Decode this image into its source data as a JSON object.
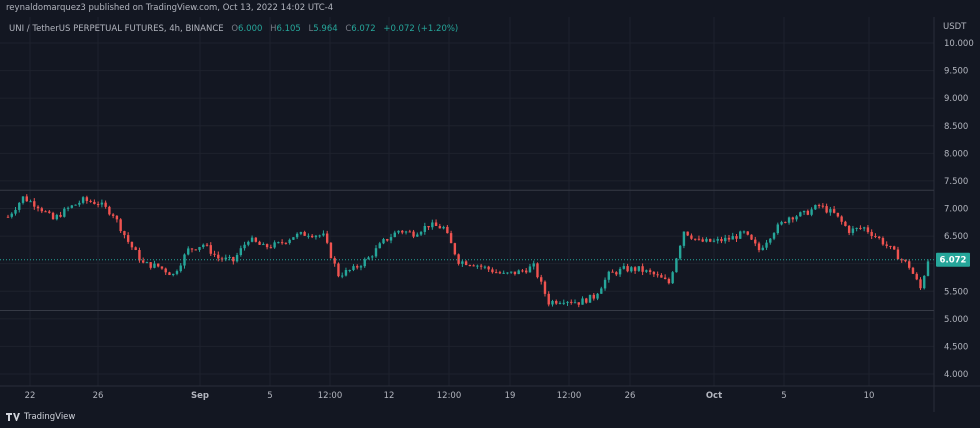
{
  "header": {
    "published": "reynaldomarquez3 published on TradingView.com, Oct 13, 2022 14:02 UTC-4"
  },
  "legend": {
    "symbol": "UNI / TetherUS PERPETUAL FUTURES, 4h, BINANCE",
    "o_label": "O",
    "o_value": "6.000",
    "h_label": "H",
    "h_value": "6.105",
    "l_label": "L",
    "l_value": "5.964",
    "c_label": "C",
    "c_value": "6.072",
    "change": "+0.072 (+1.20%)"
  },
  "footer": {
    "brand": "TradingView"
  },
  "colors": {
    "up": "#26a69a",
    "down": "#ef5350",
    "background": "#131722",
    "grid": "#1e222d",
    "text": "#b2b5be"
  },
  "chart_data": {
    "type": "candlestick",
    "symbol": "UNI / TetherUS PERPETUAL FUTURES",
    "interval": "4h",
    "exchange": "BINANCE",
    "currency": "USDT",
    "ylim": [
      3.8,
      10.2
    ],
    "y_ticks": [
      "10.000",
      "9.500",
      "9.000",
      "8.500",
      "8.000",
      "7.500",
      "7.000",
      "6.500",
      "6.000",
      "5.500",
      "5.000",
      "4.500",
      "4.000"
    ],
    "x_ticks": [
      "22",
      "26",
      "Sep",
      "5",
      "12:00",
      "12",
      "12:00",
      "19",
      "12:00",
      "26",
      "Oct",
      "5",
      "10"
    ],
    "x_tick_bold": [
      "Sep",
      "Oct"
    ],
    "last_price": 6.072,
    "horizontal_levels": [
      7.33,
      5.15
    ],
    "close_path": [
      [
        0,
        6.85
      ],
      [
        4,
        7.2
      ],
      [
        8,
        7.05
      ],
      [
        12,
        6.8
      ],
      [
        16,
        7.0
      ],
      [
        20,
        7.15
      ],
      [
        24,
        7.1
      ],
      [
        28,
        6.9
      ],
      [
        32,
        6.4
      ],
      [
        36,
        6.0
      ],
      [
        40,
        5.95
      ],
      [
        44,
        5.8
      ],
      [
        48,
        6.25
      ],
      [
        52,
        6.35
      ],
      [
        56,
        6.1
      ],
      [
        60,
        6.05
      ],
      [
        64,
        6.45
      ],
      [
        68,
        6.3
      ],
      [
        72,
        6.35
      ],
      [
        76,
        6.5
      ],
      [
        80,
        6.55
      ],
      [
        84,
        6.5
      ],
      [
        88,
        5.8
      ],
      [
        92,
        5.9
      ],
      [
        96,
        6.1
      ],
      [
        100,
        6.4
      ],
      [
        104,
        6.6
      ],
      [
        108,
        6.55
      ],
      [
        112,
        6.7
      ],
      [
        116,
        6.65
      ],
      [
        120,
        6.05
      ],
      [
        124,
        6.0
      ],
      [
        128,
        5.9
      ],
      [
        132,
        5.8
      ],
      [
        136,
        5.85
      ],
      [
        140,
        5.95
      ],
      [
        144,
        5.3
      ],
      [
        148,
        5.35
      ],
      [
        152,
        5.3
      ],
      [
        156,
        5.4
      ],
      [
        160,
        5.8
      ],
      [
        164,
        5.9
      ],
      [
        168,
        5.9
      ],
      [
        172,
        5.8
      ],
      [
        176,
        5.65
      ],
      [
        180,
        6.6
      ],
      [
        184,
        6.4
      ],
      [
        188,
        6.4
      ],
      [
        192,
        6.45
      ],
      [
        196,
        6.55
      ],
      [
        200,
        6.25
      ],
      [
        204,
        6.6
      ],
      [
        208,
        6.85
      ],
      [
        212,
        6.9
      ],
      [
        216,
        7.05
      ],
      [
        220,
        6.9
      ],
      [
        224,
        6.6
      ],
      [
        228,
        6.65
      ],
      [
        232,
        6.45
      ],
      [
        236,
        6.2
      ],
      [
        240,
        5.95
      ],
      [
        243,
        5.55
      ],
      [
        245,
        6.07
      ]
    ],
    "candles_visible": 246
  }
}
